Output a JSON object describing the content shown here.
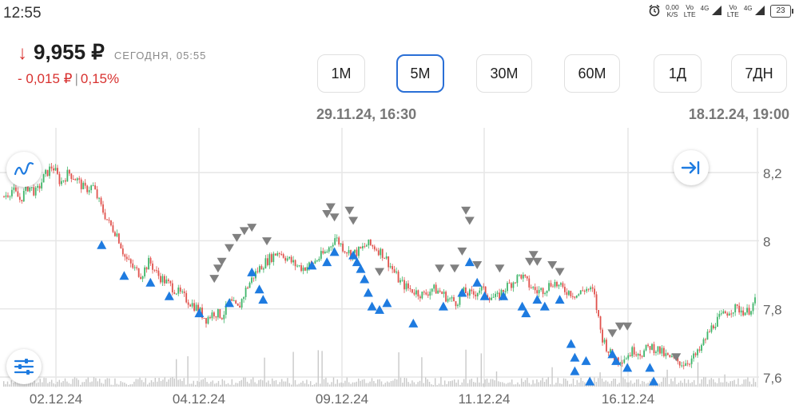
{
  "status": {
    "time": "12:55",
    "net_speed": "0,00",
    "net_unit": "K/S",
    "vo1": "Vo",
    "lte1": "LTE",
    "g1": "4G",
    "vo2": "Vo",
    "lte2": "LTE",
    "g2": "4G",
    "battery": "23"
  },
  "quote": {
    "price": "9,955 ₽",
    "time_label": "СЕГОДНЯ, 05:55",
    "change_abs": "- 0,015 ₽",
    "separator": "|",
    "change_pct": "0,15%",
    "down_color": "#d8312f"
  },
  "timeframes": [
    {
      "label": "1M",
      "active": false
    },
    {
      "label": "5M",
      "active": true
    },
    {
      "label": "30M",
      "active": false
    },
    {
      "label": "60M",
      "active": false
    },
    {
      "label": "1Д",
      "active": false
    },
    {
      "label": "7ДН",
      "active": false
    }
  ],
  "range": {
    "start": "29.11.24, 16:30",
    "end": "18.12.24, 19:00"
  },
  "chart_data": {
    "type": "candlestick",
    "y_ticks": [
      "8,2",
      "8",
      "7,8",
      "7,6"
    ],
    "ylim": [
      7.6,
      8.2
    ],
    "x_ticks": [
      "02.12.24",
      "04.12.24",
      "09.12.24",
      "11.12.24",
      "16.12.24"
    ],
    "grid": true,
    "up_color": "#3fb56a",
    "down_color": "#e0524d",
    "close_series": [
      8.13,
      8.15,
      8.12,
      8.16,
      8.14,
      8.19,
      8.22,
      8.17,
      8.2,
      8.18,
      8.15,
      8.16,
      8.1,
      8.05,
      8.02,
      7.95,
      7.92,
      7.9,
      7.94,
      7.9,
      7.88,
      7.86,
      7.84,
      7.82,
      7.8,
      7.77,
      7.79,
      7.78,
      7.82,
      7.8,
      7.86,
      7.9,
      7.93,
      7.95,
      7.97,
      7.95,
      7.93,
      7.92,
      7.93,
      7.95,
      7.97,
      8.01,
      7.98,
      7.96,
      7.97,
      7.99,
      7.98,
      7.96,
      7.92,
      7.88,
      7.86,
      7.85,
      7.84,
      7.86,
      7.85,
      7.83,
      7.82,
      7.85,
      7.84,
      7.86,
      7.84,
      7.83,
      7.86,
      7.88,
      7.9,
      7.87,
      7.85,
      7.86,
      7.88,
      7.86,
      7.85,
      7.84,
      7.86,
      7.85,
      7.72,
      7.67,
      7.65,
      7.66,
      7.68,
      7.67,
      7.69,
      7.68,
      7.66,
      7.65,
      7.64,
      7.65,
      7.67,
      7.72,
      7.76,
      7.78,
      7.8,
      7.8,
      7.79,
      7.82
    ]
  },
  "markers": {
    "buy_color": "#1e7be0",
    "sell_color": "#808080",
    "buy": [
      [
        0.13,
        8.02
      ],
      [
        0.16,
        7.93
      ],
      [
        0.195,
        7.91
      ],
      [
        0.22,
        7.87
      ],
      [
        0.26,
        7.82
      ],
      [
        0.3,
        7.85
      ],
      [
        0.33,
        7.94
      ],
      [
        0.34,
        7.89
      ],
      [
        0.345,
        7.86
      ],
      [
        0.41,
        7.96
      ],
      [
        0.43,
        7.97
      ],
      [
        0.44,
        8.0
      ],
      [
        0.465,
        7.99
      ],
      [
        0.47,
        7.97
      ],
      [
        0.475,
        7.95
      ],
      [
        0.48,
        7.92
      ],
      [
        0.485,
        7.88
      ],
      [
        0.49,
        7.84
      ],
      [
        0.5,
        7.83
      ],
      [
        0.51,
        7.85
      ],
      [
        0.545,
        7.79
      ],
      [
        0.585,
        7.84
      ],
      [
        0.61,
        7.88
      ],
      [
        0.62,
        7.97
      ],
      [
        0.63,
        7.91
      ],
      [
        0.64,
        7.87
      ],
      [
        0.665,
        7.87
      ],
      [
        0.69,
        7.84
      ],
      [
        0.695,
        7.82
      ],
      [
        0.71,
        7.86
      ],
      [
        0.72,
        7.84
      ],
      [
        0.74,
        7.86
      ],
      [
        0.755,
        7.73
      ],
      [
        0.76,
        7.69
      ],
      [
        0.76,
        7.65
      ],
      [
        0.775,
        7.68
      ],
      [
        0.78,
        7.62
      ],
      [
        0.81,
        7.7
      ],
      [
        0.815,
        7.68
      ],
      [
        0.83,
        7.66
      ],
      [
        0.86,
        7.66
      ],
      [
        0.865,
        7.62
      ]
    ],
    "sell": [
      [
        0.28,
        7.86
      ],
      [
        0.285,
        7.89
      ],
      [
        0.29,
        7.91
      ],
      [
        0.3,
        7.95
      ],
      [
        0.31,
        7.98
      ],
      [
        0.32,
        8.0
      ],
      [
        0.33,
        8.01
      ],
      [
        0.35,
        7.97
      ],
      [
        0.43,
        8.05
      ],
      [
        0.435,
        8.07
      ],
      [
        0.44,
        8.04
      ],
      [
        0.46,
        8.06
      ],
      [
        0.465,
        8.03
      ],
      [
        0.5,
        7.88
      ],
      [
        0.58,
        7.89
      ],
      [
        0.6,
        7.89
      ],
      [
        0.61,
        7.94
      ],
      [
        0.615,
        8.06
      ],
      [
        0.62,
        8.03
      ],
      [
        0.63,
        7.9
      ],
      [
        0.66,
        7.89
      ],
      [
        0.7,
        7.91
      ],
      [
        0.705,
        7.93
      ],
      [
        0.71,
        7.91
      ],
      [
        0.73,
        7.9
      ],
      [
        0.74,
        7.88
      ],
      [
        0.81,
        7.7
      ],
      [
        0.82,
        7.72
      ],
      [
        0.83,
        7.72
      ],
      [
        0.895,
        7.63
      ]
    ]
  },
  "icons": {
    "indicator": "line-chart-icon",
    "settings": "sliders-icon",
    "jump": "jump-to-end-icon"
  }
}
